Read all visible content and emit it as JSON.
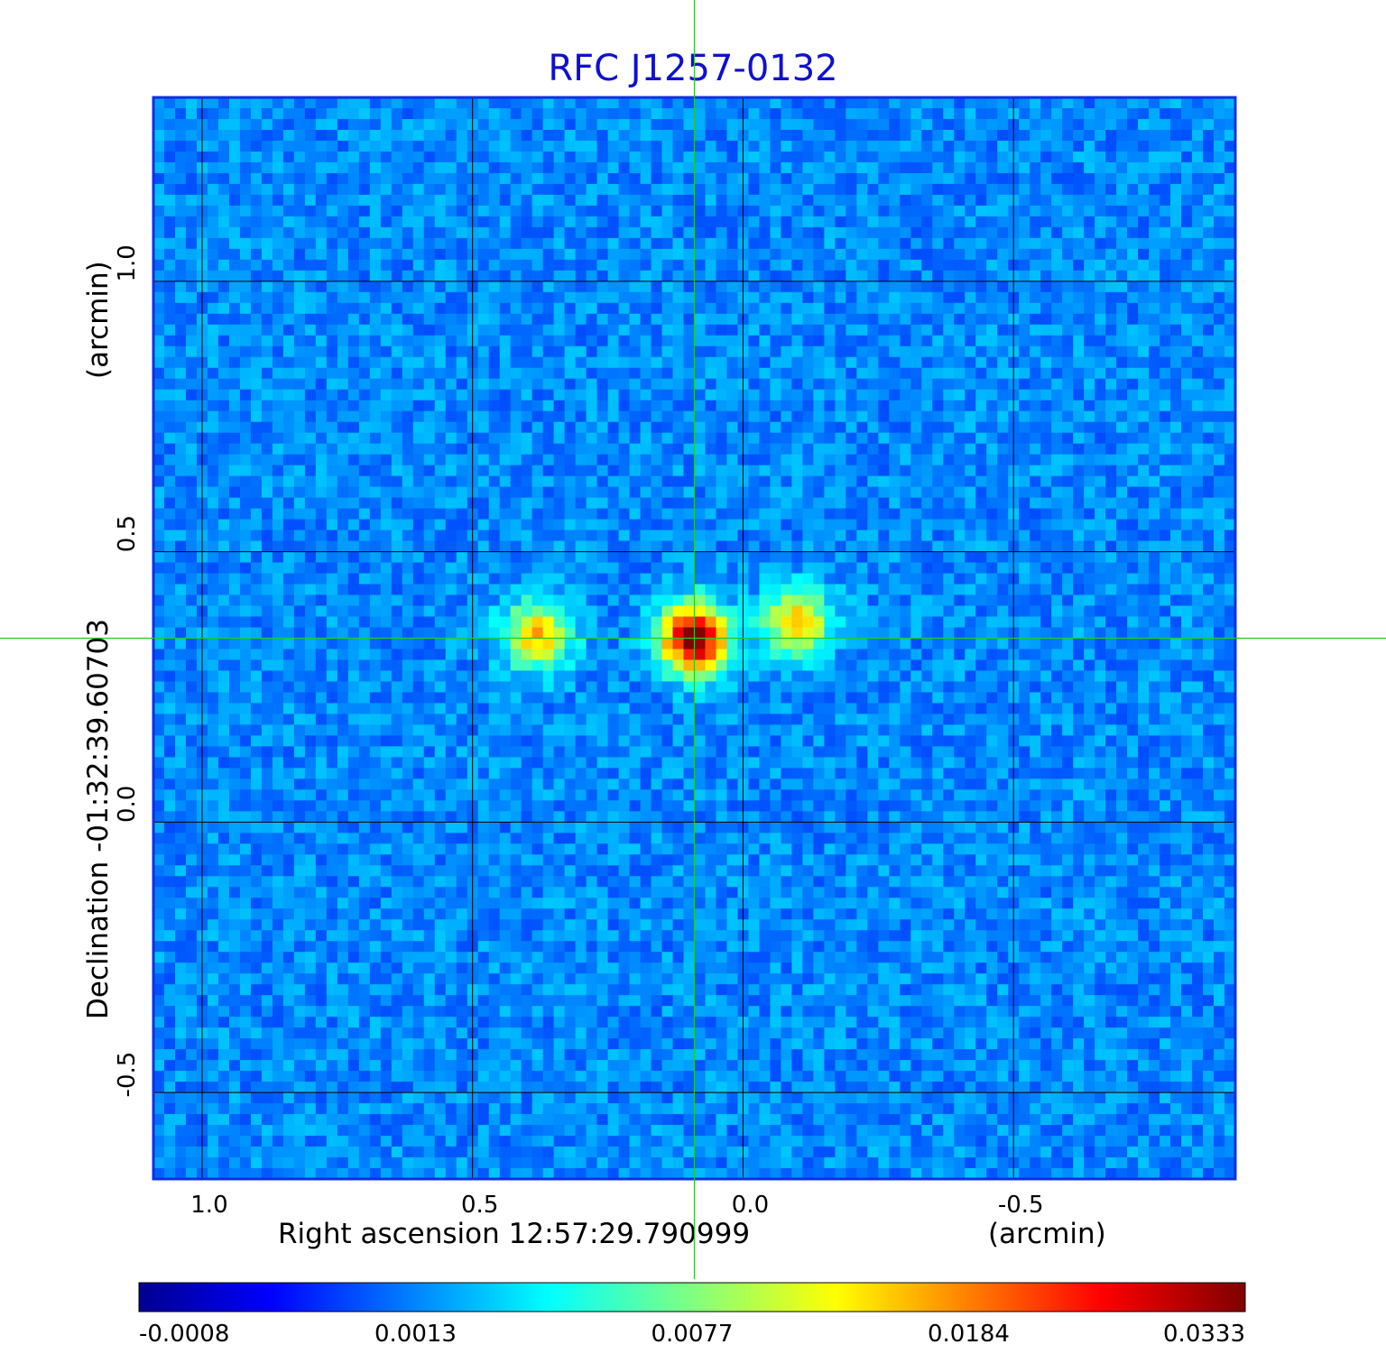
{
  "chart_data": {
    "type": "heatmap",
    "title": "RFC J1257-0132",
    "xlabel": "Right ascension  12:57:29.790999",
    "xunit": "(arcmin)",
    "ylabel": "Declination  -01:32:39.60703",
    "yunit": "(arcmin)",
    "x_ticks": [
      "1.0",
      "0.5",
      "0.0",
      "-0.5"
    ],
    "x_tick_values": [
      1.0,
      0.5,
      0.0,
      -0.5
    ],
    "y_ticks": [
      "1.0",
      "0.5",
      "0.0",
      "-0.5"
    ],
    "y_tick_values": [
      1.0,
      0.5,
      0.0,
      -0.5
    ],
    "xlim": [
      1.09,
      -0.91
    ],
    "ylim": [
      -0.66,
      1.34
    ],
    "grid": true,
    "crosshair": {
      "x": 0.09,
      "y": 0.34,
      "color": "#22cc22"
    },
    "colormap": "jet",
    "colorbar": {
      "ticks": [
        "-0.0008",
        "0.0013",
        "0.0077",
        "0.0184",
        "0.0333"
      ],
      "tick_values": [
        -0.0008,
        0.0013,
        0.0077,
        0.0184,
        0.0333
      ]
    },
    "sources": [
      {
        "x": 0.09,
        "y": 0.34,
        "peak": 0.0333
      },
      {
        "x": 0.38,
        "y": 0.345,
        "peak": 0.011
      },
      {
        "x": -0.1,
        "y": 0.37,
        "peak": 0.0085
      }
    ]
  }
}
